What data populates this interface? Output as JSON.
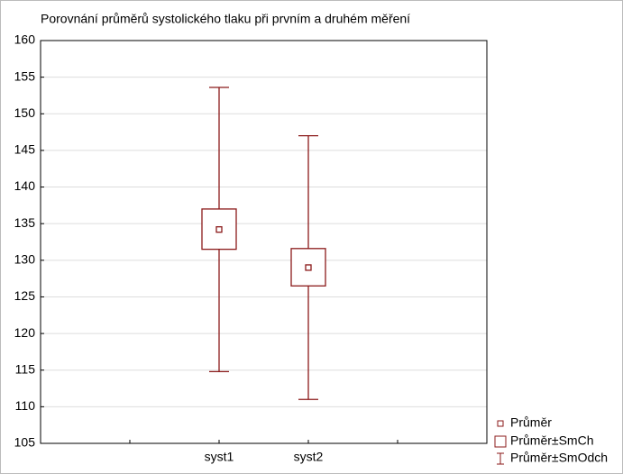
{
  "chart_data": {
    "type": "box",
    "title": "Porovnání průměrů systolického tlaku při prvním a druhém měření",
    "categories": [
      "syst1",
      "syst2"
    ],
    "mean": [
      134.2,
      129.0
    ],
    "se_low": [
      131.5,
      126.5
    ],
    "se_high": [
      137.0,
      131.6
    ],
    "sd_low": [
      114.8,
      111.0
    ],
    "sd_high": [
      153.6,
      147.0
    ],
    "color": "#8b1a1a",
    "ylim": [
      105,
      160
    ],
    "yticks": [
      105,
      110,
      115,
      120,
      125,
      130,
      135,
      140,
      145,
      150,
      155,
      160
    ],
    "grid": true,
    "legend": [
      "Průměr",
      "Průměr±SmCh",
      "Průměr±SmOdch"
    ],
    "legend_position": "lower right"
  }
}
